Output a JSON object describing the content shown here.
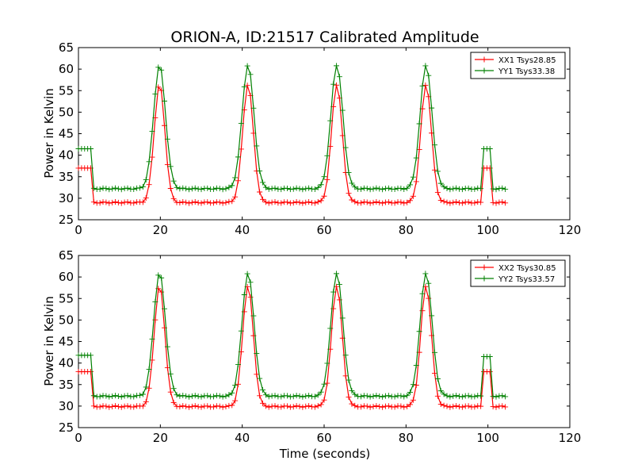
{
  "chart_data": [
    {
      "type": "line",
      "title": "ORION-A, ID:21517 Calibrated Amplitude",
      "xlabel": "",
      "ylabel": "Power in Kelvin",
      "xlim": [
        0,
        120
      ],
      "ylim": [
        25,
        65
      ],
      "xticks": [
        "0",
        "20",
        "40",
        "60",
        "80",
        "100",
        "120"
      ],
      "yticks": [
        "25",
        "30",
        "35",
        "40",
        "45",
        "50",
        "55",
        "60",
        "65"
      ],
      "legend_position": "top-right",
      "series": [
        {
          "name": "XX1 Tsys28.85",
          "color": "#ff0000",
          "params": {
            "x_start": 0,
            "x_end": 104,
            "x_step": 0.75,
            "pre_level": 37,
            "pre_end": 3.1,
            "base": 29.0,
            "peak": 56.5,
            "peak_centers": [
              19.8,
              41.4,
              63.1,
              84.9
            ],
            "peak_width": 1.3,
            "post_gap_start": 98.3,
            "post_gap_end": 100.6,
            "post_level": 37
          }
        },
        {
          "name": "YY1 Tsys33.38",
          "color": "#008000",
          "params": {
            "x_start": 0,
            "x_end": 104,
            "x_step": 0.75,
            "pre_level": 41.5,
            "pre_end": 3.1,
            "base": 32.2,
            "peak": 61.0,
            "peak_centers": [
              19.8,
              41.4,
              63.1,
              84.9
            ],
            "peak_width": 1.45,
            "post_gap_start": 98.3,
            "post_gap_end": 100.6,
            "post_level": 41.5
          }
        }
      ]
    },
    {
      "type": "line",
      "title": "",
      "xlabel": "Time (seconds)",
      "ylabel": "Power in Kelvin",
      "xlim": [
        0,
        120
      ],
      "ylim": [
        25,
        65
      ],
      "xticks": [
        "0",
        "20",
        "40",
        "60",
        "80",
        "100",
        "120"
      ],
      "yticks": [
        "25",
        "30",
        "35",
        "40",
        "45",
        "50",
        "55",
        "60",
        "65"
      ],
      "legend_position": "top-right",
      "series": [
        {
          "name": "XX2 Tsys30.85",
          "color": "#ff0000",
          "params": {
            "x_start": 0,
            "x_end": 104,
            "x_step": 0.75,
            "pre_level": 38,
            "pre_end": 3.1,
            "base": 29.9,
            "peak": 58.0,
            "peak_centers": [
              19.8,
              41.4,
              63.1,
              84.9
            ],
            "peak_width": 1.3,
            "post_gap_start": 98.3,
            "post_gap_end": 100.6,
            "post_level": 38
          }
        },
        {
          "name": "YY2 Tsys33.57",
          "color": "#008000",
          "params": {
            "x_start": 0,
            "x_end": 104,
            "x_step": 0.75,
            "pre_level": 41.8,
            "pre_end": 3.1,
            "base": 32.3,
            "peak": 61.0,
            "peak_centers": [
              19.8,
              41.4,
              63.1,
              84.9
            ],
            "peak_width": 1.45,
            "post_gap_start": 98.3,
            "post_gap_end": 100.6,
            "post_level": 41.5
          }
        }
      ]
    }
  ]
}
